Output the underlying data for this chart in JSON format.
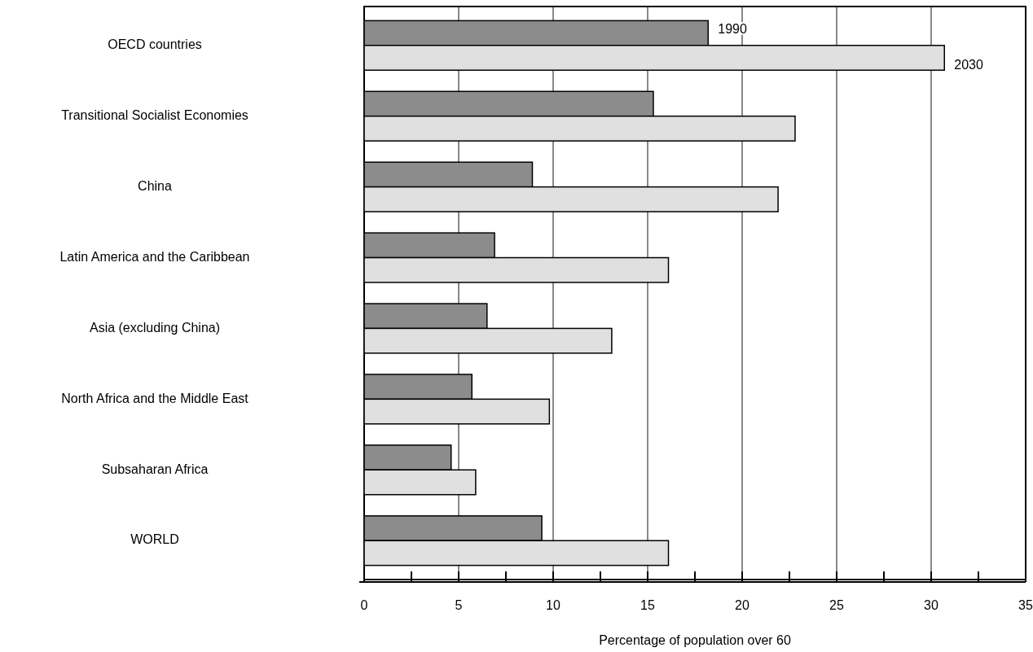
{
  "chart_data": {
    "type": "bar",
    "orientation": "horizontal",
    "xlabel": "Percentage of population over 60",
    "categories": [
      "OECD countries",
      "Transitional Socialist Economies",
      "China",
      "Latin America and the Caribbean",
      "Asia (excluding China)",
      "North Africa and the Middle East",
      "Subsaharan Africa",
      "WORLD"
    ],
    "series": [
      {
        "name": "1990",
        "color": "#8c8c8c",
        "values": [
          18.2,
          15.3,
          8.9,
          6.9,
          6.5,
          5.7,
          4.6,
          9.4
        ]
      },
      {
        "name": "2030",
        "color": "#e0e0e0",
        "values": [
          30.7,
          22.8,
          21.9,
          16.1,
          13.1,
          9.8,
          5.9,
          16.1
        ]
      }
    ],
    "xlim": [
      0,
      35
    ],
    "xticks": [
      0,
      {
        "value": 2.5,
        "label": null
      },
      5,
      {
        "value": 7.5,
        "label": null
      },
      10,
      {
        "value": 12.5,
        "label": null
      },
      15,
      {
        "value": 17.5,
        "label": null
      },
      20,
      {
        "value": 22.5,
        "label": null
      },
      25,
      {
        "value": 27.5,
        "label": null
      },
      30,
      {
        "value": 32.5,
        "label": null
      },
      35
    ],
    "grid": "x"
  }
}
